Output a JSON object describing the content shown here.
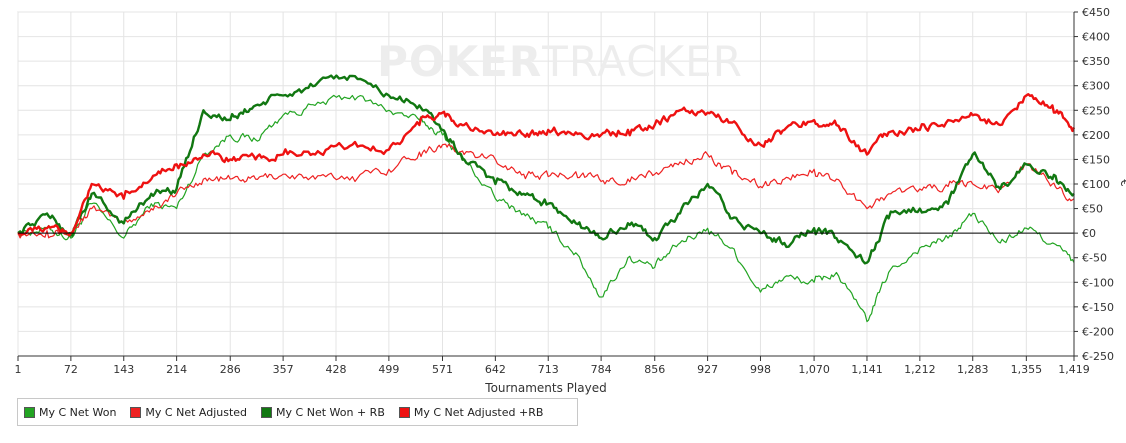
{
  "watermark": {
    "bold": "POKER",
    "light": "TRACKER"
  },
  "chart_data": {
    "type": "line",
    "title": "",
    "xlabel": "Tournaments Played",
    "ylabel": "€",
    "xlim": [
      1,
      1419
    ],
    "ylim": [
      -250,
      450
    ],
    "xticks": [
      1,
      72,
      143,
      214,
      286,
      357,
      428,
      499,
      571,
      642,
      713,
      784,
      856,
      927,
      998,
      1070,
      1141,
      1212,
      1283,
      1355,
      1419
    ],
    "xtick_labels": [
      "1",
      "72",
      "143",
      "214",
      "286",
      "357",
      "428",
      "499",
      "571",
      "642",
      "713",
      "784",
      "856",
      "927",
      "998",
      "1,070",
      "1,141",
      "1,212",
      "1,283",
      "1,355",
      "1,419"
    ],
    "yticks": [
      -250,
      -200,
      -150,
      -100,
      -50,
      0,
      50,
      100,
      150,
      200,
      250,
      300,
      350,
      400,
      450
    ],
    "ytick_labels": [
      "€-250",
      "€-200",
      "€-150",
      "€-100",
      "€-50",
      "€0",
      "€50",
      "€100",
      "€150",
      "€200",
      "€250",
      "€300",
      "€350",
      "€400",
      "€450"
    ],
    "grid": true,
    "legend_position": "bottom-left",
    "series": [
      {
        "name": "My C Net Won",
        "color": "#22a422",
        "width": 1.2,
        "x": [
          1,
          40,
          72,
          100,
          143,
          180,
          214,
          250,
          286,
          320,
          357,
          400,
          450,
          499,
          540,
          571,
          600,
          642,
          680,
          713,
          750,
          784,
          820,
          856,
          890,
          927,
          960,
          998,
          1030,
          1070,
          1100,
          1141,
          1170,
          1212,
          1250,
          1283,
          1320,
          1355,
          1390,
          1419
        ],
        "y": [
          0,
          10,
          -10,
          60,
          -10,
          60,
          50,
          160,
          200,
          190,
          240,
          260,
          280,
          250,
          230,
          200,
          150,
          70,
          40,
          10,
          -40,
          -130,
          -50,
          -70,
          -20,
          10,
          -30,
          -120,
          -90,
          -100,
          -80,
          -180,
          -80,
          -30,
          -10,
          40,
          -20,
          10,
          -20,
          -60
        ]
      },
      {
        "name": "My C Net Adjusted",
        "color": "#ee2222",
        "width": 1.2,
        "x": [
          1,
          40,
          72,
          100,
          143,
          180,
          214,
          250,
          286,
          320,
          357,
          400,
          450,
          499,
          540,
          571,
          600,
          642,
          680,
          713,
          750,
          784,
          820,
          856,
          890,
          927,
          960,
          998,
          1030,
          1070,
          1100,
          1141,
          1170,
          1212,
          1250,
          1283,
          1320,
          1355,
          1390,
          1419
        ],
        "y": [
          0,
          5,
          0,
          50,
          20,
          50,
          80,
          110,
          110,
          110,
          120,
          110,
          115,
          130,
          165,
          180,
          160,
          150,
          120,
          115,
          125,
          105,
          110,
          120,
          145,
          160,
          120,
          95,
          110,
          130,
          110,
          50,
          80,
          90,
          95,
          100,
          90,
          140,
          100,
          70
        ]
      },
      {
        "name": "My C Net Won + RB",
        "color": "#117711",
        "width": 2.4,
        "x": [
          1,
          40,
          72,
          100,
          143,
          180,
          214,
          250,
          286,
          320,
          357,
          400,
          450,
          499,
          540,
          571,
          600,
          642,
          680,
          713,
          750,
          784,
          820,
          856,
          890,
          927,
          960,
          998,
          1030,
          1070,
          1100,
          1141,
          1170,
          1212,
          1250,
          1283,
          1320,
          1355,
          1390,
          1419
        ],
        "y": [
          0,
          40,
          -5,
          80,
          20,
          80,
          90,
          250,
          230,
          260,
          280,
          300,
          320,
          280,
          260,
          210,
          150,
          100,
          80,
          60,
          20,
          -10,
          20,
          -10,
          40,
          100,
          30,
          0,
          -20,
          10,
          -10,
          -60,
          30,
          50,
          60,
          160,
          90,
          140,
          110,
          80
        ]
      },
      {
        "name": "My C Net Adjusted +RB",
        "color": "#ee1111",
        "width": 2.4,
        "x": [
          1,
          40,
          72,
          100,
          143,
          180,
          214,
          250,
          286,
          320,
          357,
          400,
          450,
          499,
          540,
          571,
          600,
          642,
          680,
          713,
          750,
          784,
          820,
          856,
          890,
          927,
          960,
          998,
          1030,
          1070,
          1100,
          1141,
          1170,
          1212,
          1250,
          1283,
          1320,
          1355,
          1390,
          1419
        ],
        "y": [
          0,
          10,
          0,
          100,
          70,
          110,
          140,
          160,
          150,
          150,
          160,
          160,
          180,
          170,
          220,
          245,
          220,
          200,
          200,
          210,
          205,
          200,
          210,
          220,
          250,
          245,
          225,
          180,
          210,
          230,
          220,
          160,
          205,
          210,
          230,
          240,
          220,
          280,
          260,
          215
        ]
      }
    ]
  }
}
